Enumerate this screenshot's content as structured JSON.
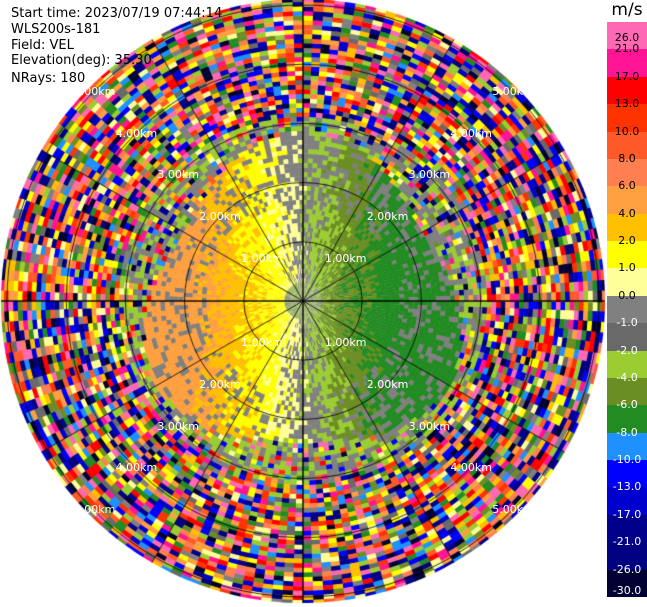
{
  "header": {
    "start_time": "Start time: 2023/07/19 07:44:14",
    "instrument": "WLS200s-181",
    "field": "Field: VEL",
    "elevation": "Elevation(deg): 35.30",
    "nrays": "NRays: 180"
  },
  "ppi": {
    "range_rings_km": [
      1,
      2,
      3,
      4,
      5
    ],
    "range_labels": [
      "1.00km",
      "2.00km",
      "3.00km",
      "4.00km",
      "5.00km"
    ],
    "ray_count": 180,
    "spoke_angles_deg": [
      0,
      30,
      60,
      90,
      120,
      150,
      180,
      210,
      240,
      270,
      300,
      330
    ]
  },
  "colorbar": {
    "unit": "m/s",
    "ticks": [
      "26.0",
      "21.0",
      "17.0",
      "13.0",
      "10.0",
      "8.0",
      "6.0",
      "4.0",
      "2.0",
      "1.0",
      "0.0",
      "-1.0",
      "-2.0",
      "-4.0",
      "-6.0",
      "-8.0",
      "-10.0",
      "-13.0",
      "-17.0",
      "-21.0",
      "-26.0",
      "-30.0"
    ],
    "colors": [
      "#ff69b4",
      "#ff1493",
      "#ff0000",
      "#ff3300",
      "#ff5a28",
      "#ff7f50",
      "#ffa040",
      "#ffc000",
      "#ffff00",
      "#ffff99",
      "#808080",
      "#696969",
      "#9acd32",
      "#6b8e23",
      "#228b22",
      "#1e90ff",
      "#0000ff",
      "#0000cd",
      "#00008b",
      "#000080",
      "#000033"
    ]
  }
}
